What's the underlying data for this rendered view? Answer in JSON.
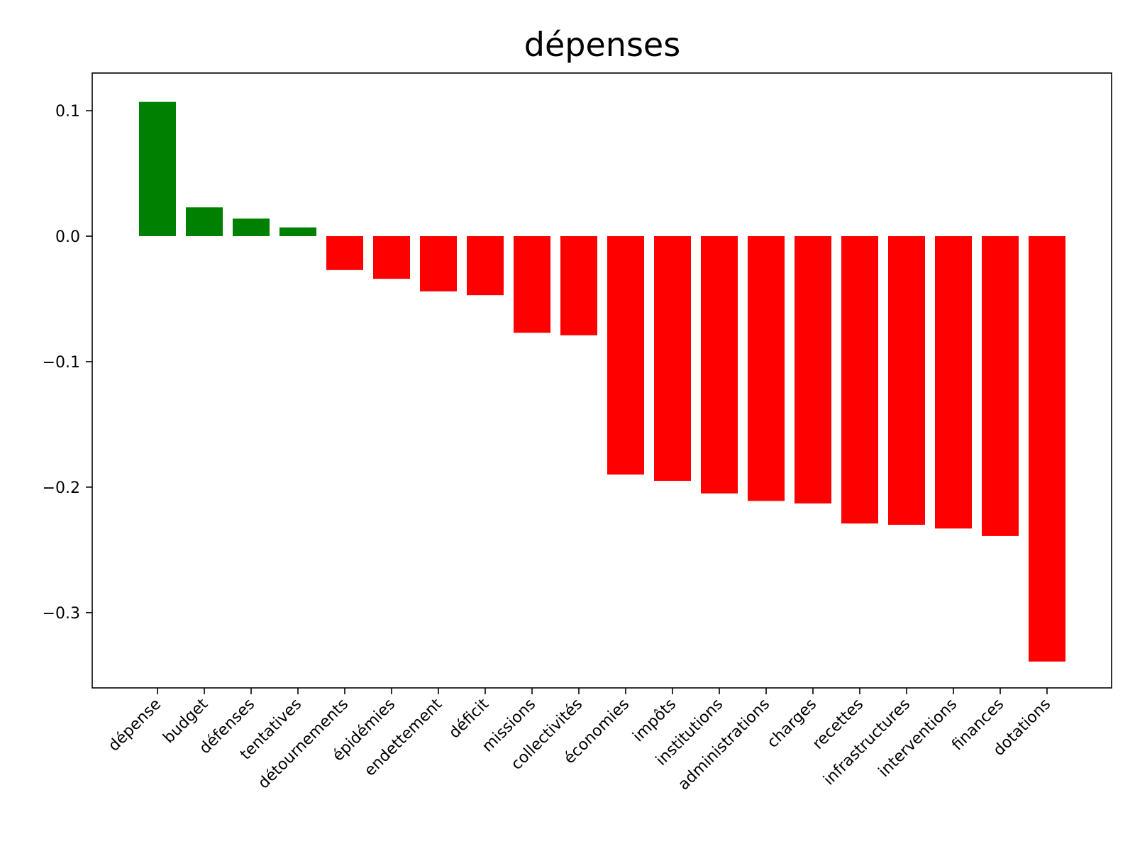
{
  "chart_data": {
    "type": "bar",
    "title": "dépenses",
    "xlabel": "",
    "ylabel": "",
    "ylim": [
      -0.36,
      0.13
    ],
    "yticks": [
      0.1,
      0.0,
      -0.1,
      -0.2,
      -0.3
    ],
    "ytick_labels": [
      "0.1",
      "0.0",
      "−0.1",
      "−0.2",
      "−0.3"
    ],
    "grid": false,
    "positive_color": "#008000",
    "negative_color": "#ff0000",
    "categories": [
      "dépense",
      "budget",
      "défenses",
      "tentatives",
      "détournements",
      "épidémies",
      "endettement",
      "déficit",
      "missions",
      "collectivités",
      "économies",
      "impôts",
      "institutions",
      "administrations",
      "charges",
      "recettes",
      "infrastructures",
      "interventions",
      "finances",
      "dotations"
    ],
    "values": [
      0.107,
      0.023,
      0.014,
      0.007,
      -0.027,
      -0.034,
      -0.044,
      -0.047,
      -0.077,
      -0.079,
      -0.19,
      -0.195,
      -0.205,
      -0.211,
      -0.213,
      -0.229,
      -0.23,
      -0.233,
      -0.239,
      -0.339
    ]
  }
}
